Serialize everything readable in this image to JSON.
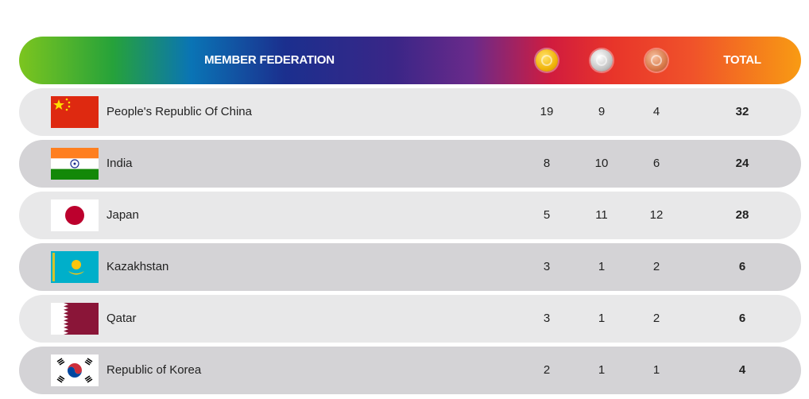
{
  "header": {
    "federation_label": "MEMBER FEDERATION",
    "total_label": "TOTAL",
    "medal_icons": [
      "gold-medal-icon",
      "silver-medal-icon",
      "bronze-medal-icon"
    ]
  },
  "colors": {
    "row_light": "#e8e8e9",
    "row_dark": "#d4d3d6",
    "text": "#222222"
  },
  "rows": [
    {
      "country": "People's Republic Of China",
      "flag": "china-flag-icon",
      "gold": "19",
      "silver": "9",
      "bronze": "4",
      "total": "32"
    },
    {
      "country": "India",
      "flag": "india-flag-icon",
      "gold": "8",
      "silver": "10",
      "bronze": "6",
      "total": "24"
    },
    {
      "country": "Japan",
      "flag": "japan-flag-icon",
      "gold": "5",
      "silver": "11",
      "bronze": "12",
      "total": "28"
    },
    {
      "country": "Kazakhstan",
      "flag": "kazakhstan-flag-icon",
      "gold": "3",
      "silver": "1",
      "bronze": "2",
      "total": "6"
    },
    {
      "country": "Qatar",
      "flag": "qatar-flag-icon",
      "gold": "3",
      "silver": "1",
      "bronze": "2",
      "total": "6"
    },
    {
      "country": "Republic of Korea",
      "flag": "korea-flag-icon",
      "gold": "2",
      "silver": "1",
      "bronze": "1",
      "total": "4"
    }
  ]
}
